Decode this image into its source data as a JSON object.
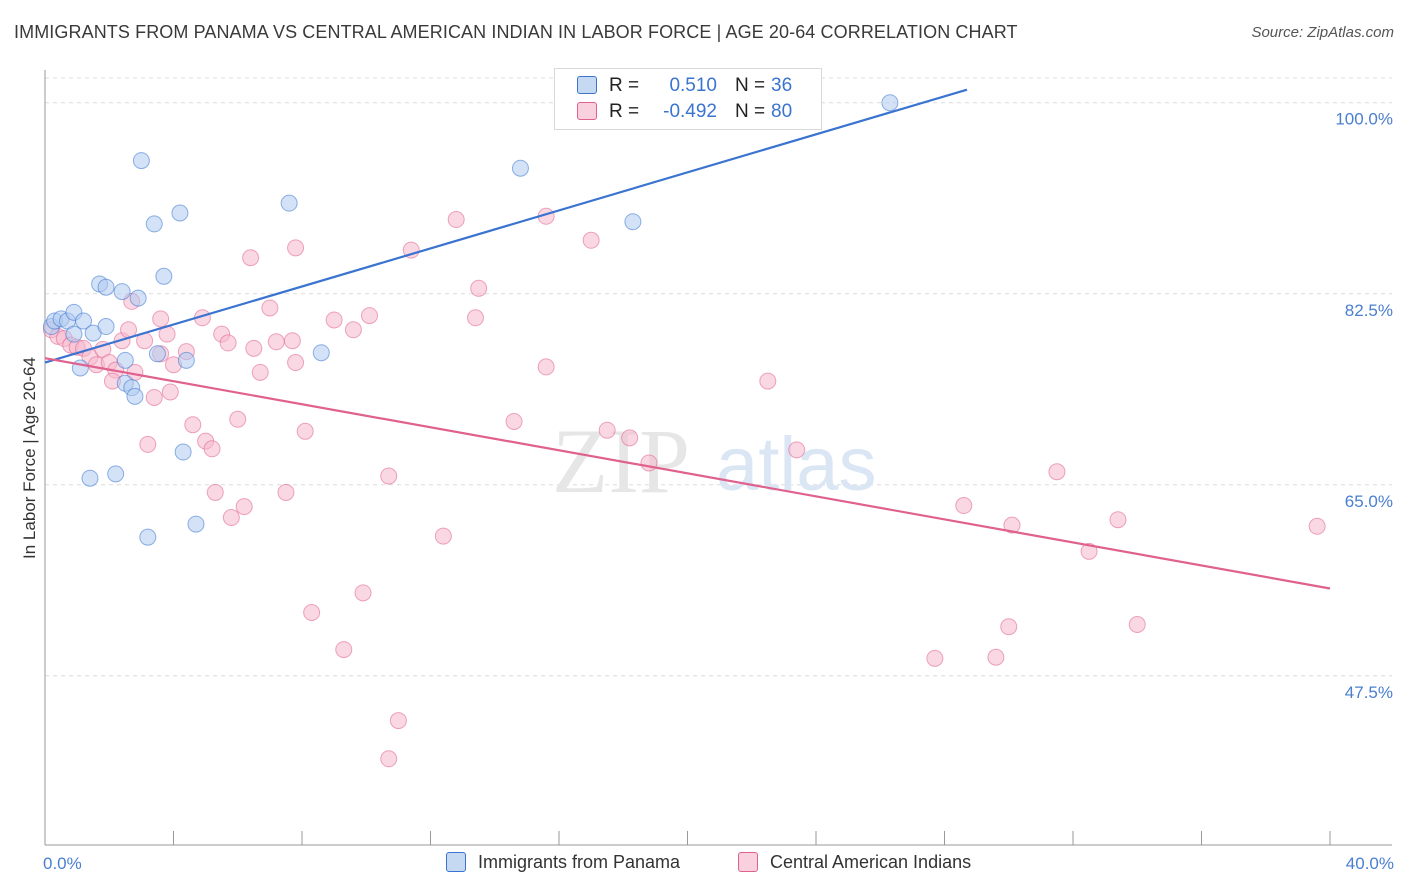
{
  "title": "IMMIGRANTS FROM PANAMA VS CENTRAL AMERICAN INDIAN IN LABOR FORCE | AGE 20-64 CORRELATION CHART",
  "source": "Source: ZipAtlas.com",
  "watermark": {
    "zip": "ZIP",
    "atlas": "atlas"
  },
  "legend": {
    "series1": {
      "r_label": "R =",
      "r_value": "0.510",
      "n_label": "N =",
      "n_value": "36"
    },
    "series2": {
      "r_label": "R =",
      "r_value": "-0.492",
      "n_label": "N =",
      "n_value": "80"
    }
  },
  "bottom_legend": {
    "series1": "Immigrants from Panama",
    "series2": "Central American Indians"
  },
  "colors": {
    "blue": "#3a74d0",
    "blue_fill": "#aecbf0",
    "pink": "#e0608e",
    "pink_fill": "#f5b8cc",
    "grid": "#dcdcdc",
    "tick_text": "#4a7fd0"
  },
  "chart_data": {
    "type": "scatter",
    "title": "IMMIGRANTS FROM PANAMA VS CENTRAL AMERICAN INDIAN IN LABOR FORCE | AGE 20-64 CORRELATION CHART",
    "xlabel": "",
    "ylabel": "In Labor Force | Age 20-64",
    "xlim": [
      0,
      40
    ],
    "ylim": [
      32,
      103
    ],
    "x_tick_labels": [
      {
        "value": 0,
        "label": "0.0%"
      },
      {
        "value": 40,
        "label": "40.0%"
      }
    ],
    "y_ticks": [
      {
        "value": 100,
        "label": "100.0%"
      },
      {
        "value": 82.5,
        "label": "82.5%"
      },
      {
        "value": 65,
        "label": "65.0%"
      },
      {
        "value": 47.5,
        "label": "47.5%"
      }
    ],
    "x_minor_ticks": [
      4,
      8,
      12,
      16,
      20,
      24,
      28,
      32,
      36,
      40
    ],
    "series": [
      {
        "name": "Immigrants from Panama",
        "color": "#3a74d0",
        "trend": {
          "x": [
            0,
            28.7
          ],
          "y": [
            76.2,
            101.2
          ]
        },
        "points": [
          [
            0.2,
            79.5
          ],
          [
            0.3,
            80.0
          ],
          [
            0.5,
            80.2
          ],
          [
            0.7,
            80.0
          ],
          [
            0.9,
            80.8
          ],
          [
            1.2,
            80.0
          ],
          [
            0.9,
            78.8
          ],
          [
            1.5,
            78.9
          ],
          [
            1.9,
            79.5
          ],
          [
            1.1,
            75.7
          ],
          [
            2.5,
            76.4
          ],
          [
            2.4,
            82.7
          ],
          [
            1.7,
            83.4
          ],
          [
            1.9,
            83.1
          ],
          [
            2.9,
            82.1
          ],
          [
            3.7,
            84.1
          ],
          [
            3.4,
            88.9
          ],
          [
            4.2,
            89.9
          ],
          [
            3.0,
            94.7
          ],
          [
            7.6,
            90.8
          ],
          [
            14.8,
            94.0
          ],
          [
            18.3,
            89.1
          ],
          [
            26.3,
            100.0
          ],
          [
            3.5,
            77.0
          ],
          [
            4.4,
            76.4
          ],
          [
            8.6,
            77.1
          ],
          [
            2.5,
            74.3
          ],
          [
            2.7,
            73.9
          ],
          [
            2.8,
            73.1
          ],
          [
            4.3,
            68.0
          ],
          [
            1.4,
            65.6
          ],
          [
            2.2,
            66.0
          ],
          [
            4.7,
            61.4
          ],
          [
            3.2,
            60.2
          ]
        ]
      },
      {
        "name": "Central American Indians",
        "color": "#e0608e",
        "trend": {
          "x": [
            0,
            40
          ],
          "y": [
            76.6,
            55.5
          ]
        },
        "points": [
          [
            0.2,
            79.2
          ],
          [
            0.4,
            78.6
          ],
          [
            0.6,
            78.4
          ],
          [
            0.8,
            77.8
          ],
          [
            1.0,
            77.6
          ],
          [
            1.2,
            77.5
          ],
          [
            1.4,
            76.7
          ],
          [
            1.6,
            76.0
          ],
          [
            1.8,
            77.4
          ],
          [
            2.0,
            76.2
          ],
          [
            2.2,
            75.5
          ],
          [
            2.4,
            78.2
          ],
          [
            2.6,
            79.2
          ],
          [
            3.8,
            78.8
          ],
          [
            3.6,
            80.2
          ],
          [
            2.7,
            81.8
          ],
          [
            3.1,
            78.2
          ],
          [
            4.0,
            76.0
          ],
          [
            4.4,
            77.2
          ],
          [
            4.9,
            80.3
          ],
          [
            5.5,
            78.8
          ],
          [
            5.7,
            78.0
          ],
          [
            3.6,
            77.0
          ],
          [
            6.5,
            77.5
          ],
          [
            7.2,
            78.1
          ],
          [
            7.0,
            81.2
          ],
          [
            7.7,
            78.2
          ],
          [
            7.8,
            76.2
          ],
          [
            6.7,
            75.3
          ],
          [
            2.8,
            75.3
          ],
          [
            2.1,
            74.5
          ],
          [
            3.4,
            73.0
          ],
          [
            3.9,
            73.5
          ],
          [
            6.0,
            71.0
          ],
          [
            4.6,
            70.5
          ],
          [
            5.0,
            69.0
          ],
          [
            3.2,
            68.7
          ],
          [
            5.2,
            68.3
          ],
          [
            8.1,
            69.9
          ],
          [
            9.0,
            80.1
          ],
          [
            9.6,
            79.2
          ],
          [
            10.1,
            80.5
          ],
          [
            6.4,
            85.8
          ],
          [
            7.8,
            86.7
          ],
          [
            11.4,
            86.5
          ],
          [
            12.8,
            89.3
          ],
          [
            13.5,
            83.0
          ],
          [
            13.4,
            80.3
          ],
          [
            15.6,
            89.6
          ],
          [
            17.0,
            87.4
          ],
          [
            14.6,
            70.8
          ],
          [
            15.6,
            75.8
          ],
          [
            17.5,
            70.0
          ],
          [
            18.2,
            69.3
          ],
          [
            18.8,
            67.0
          ],
          [
            22.5,
            74.5
          ],
          [
            23.4,
            68.2
          ],
          [
            5.3,
            64.3
          ],
          [
            6.2,
            63.0
          ],
          [
            5.8,
            62.0
          ],
          [
            7.5,
            64.3
          ],
          [
            10.7,
            65.8
          ],
          [
            12.4,
            60.3
          ],
          [
            8.3,
            53.3
          ],
          [
            9.9,
            55.1
          ],
          [
            9.3,
            49.9
          ],
          [
            11.0,
            43.4
          ],
          [
            10.7,
            39.9
          ],
          [
            28.6,
            63.1
          ],
          [
            30.1,
            61.3
          ],
          [
            31.5,
            66.2
          ],
          [
            33.4,
            61.8
          ],
          [
            32.5,
            58.9
          ],
          [
            39.6,
            61.2
          ],
          [
            27.7,
            49.1
          ],
          [
            29.6,
            49.2
          ],
          [
            30.0,
            52.0
          ],
          [
            34.0,
            52.2
          ]
        ]
      }
    ]
  }
}
